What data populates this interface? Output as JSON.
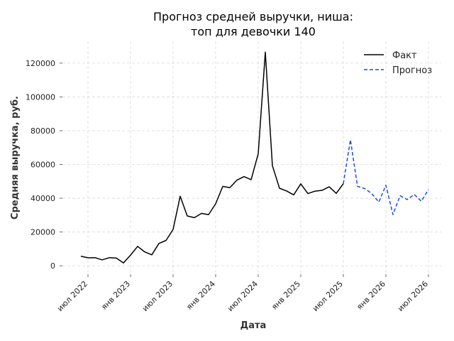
{
  "chart_data": {
    "type": "line",
    "title_lines": [
      "Прогноз средней выручки, ниша:",
      "топ для девочки 140"
    ],
    "xlabel": "Дата",
    "ylabel": "Средняя выручка, руб.",
    "x_ticks": [
      "июл 2022",
      "янв 2023",
      "июл 2023",
      "янв 2024",
      "июл 2024",
      "янв 2025",
      "июл 2025",
      "янв 2026",
      "июл 2026"
    ],
    "x_range": [
      "2022-05",
      "2026-09"
    ],
    "y_ticks": [
      "0",
      "20000",
      "40000",
      "60000",
      "80000",
      "100000",
      "120000"
    ],
    "ylim": [
      -5000,
      133000
    ],
    "grid": true,
    "legend_position": "top-right",
    "series": [
      {
        "name": "Факт",
        "color": "#000000",
        "style": "solid",
        "points": [
          [
            "2022-06",
            5700
          ],
          [
            "2022-07",
            4700
          ],
          [
            "2022-08",
            4800
          ],
          [
            "2022-09",
            3500
          ],
          [
            "2022-10",
            4800
          ],
          [
            "2022-11",
            4600
          ],
          [
            "2022-12",
            1700
          ],
          [
            "2023-01",
            6300
          ],
          [
            "2023-02",
            11500
          ],
          [
            "2023-03",
            8200
          ],
          [
            "2023-04",
            6500
          ],
          [
            "2023-05",
            13200
          ],
          [
            "2023-06",
            15000
          ],
          [
            "2023-07",
            21500
          ],
          [
            "2023-08",
            41200
          ],
          [
            "2023-09",
            29500
          ],
          [
            "2023-10",
            28500
          ],
          [
            "2023-11",
            31000
          ],
          [
            "2023-12",
            30300
          ],
          [
            "2024-01",
            36700
          ],
          [
            "2024-02",
            47000
          ],
          [
            "2024-03",
            46300
          ],
          [
            "2024-04",
            50700
          ],
          [
            "2024-05",
            52800
          ],
          [
            "2024-06",
            51000
          ],
          [
            "2024-07",
            66300
          ],
          [
            "2024-08",
            126500
          ],
          [
            "2024-09",
            59300
          ],
          [
            "2024-10",
            45900
          ],
          [
            "2024-11",
            44300
          ],
          [
            "2024-12",
            42000
          ],
          [
            "2025-01",
            48500
          ],
          [
            "2025-02",
            42800
          ],
          [
            "2025-03",
            44200
          ],
          [
            "2025-04",
            44700
          ],
          [
            "2025-05",
            46800
          ],
          [
            "2025-06",
            42900
          ],
          [
            "2025-07",
            48600
          ]
        ]
      },
      {
        "name": "Прогноз",
        "color": "#1a4fd6",
        "style": "dashed",
        "points": [
          [
            "2025-07",
            48600
          ],
          [
            "2025-08",
            74600
          ],
          [
            "2025-09",
            47000
          ],
          [
            "2025-10",
            45800
          ],
          [
            "2025-11",
            42800
          ],
          [
            "2025-12",
            37700
          ],
          [
            "2026-01",
            47700
          ],
          [
            "2026-02",
            30300
          ],
          [
            "2026-03",
            41500
          ],
          [
            "2026-04",
            39200
          ],
          [
            "2026-05",
            42200
          ],
          [
            "2026-06",
            38200
          ],
          [
            "2026-07",
            45200
          ]
        ]
      }
    ]
  }
}
